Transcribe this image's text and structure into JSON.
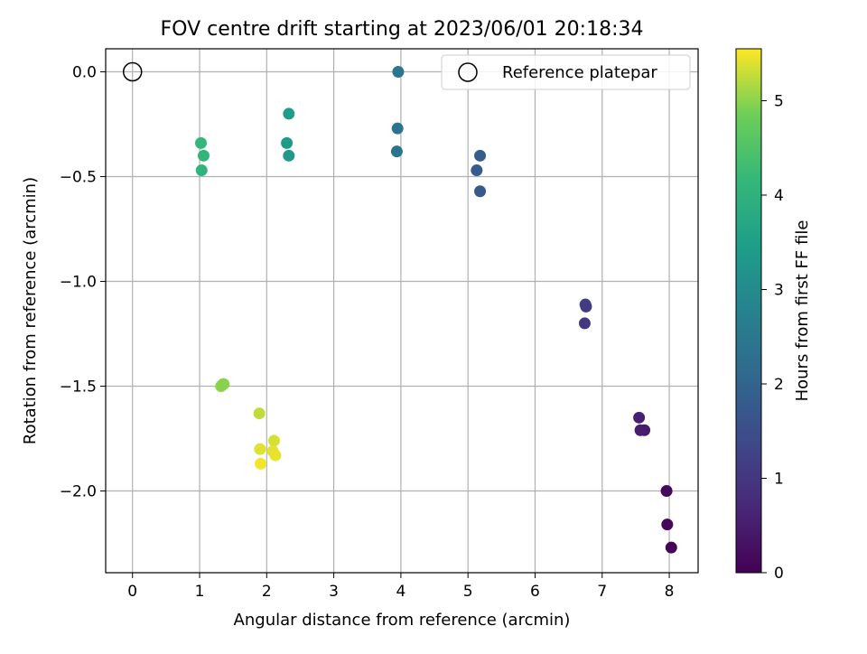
{
  "chart_data": {
    "type": "scatter",
    "title": "FOV centre drift starting at 2023/06/01 20:18:34",
    "xlabel": "Angular distance from reference (arcmin)",
    "ylabel": "Rotation from reference (arcmin)",
    "xlim": [
      -0.4,
      8.43
    ],
    "ylim": [
      -2.39,
      0.11
    ],
    "xticks": [
      0,
      1,
      2,
      3,
      4,
      5,
      6,
      7,
      8
    ],
    "xtick_labels": [
      "0",
      "1",
      "2",
      "3",
      "4",
      "5",
      "6",
      "7",
      "8"
    ],
    "yticks": [
      0.0,
      -0.5,
      -1.0,
      -1.5,
      -2.0
    ],
    "ytick_labels": [
      "0.0",
      "−0.5",
      "−1.0",
      "−1.5",
      "−2.0"
    ],
    "grid": true,
    "legend": {
      "position": "top-right",
      "entries": [
        "Reference platepar"
      ]
    },
    "reference_point": {
      "name": "Reference platepar",
      "x": 0,
      "y": 0
    },
    "colorbar": {
      "label": "Hours from first FF file",
      "colormap": "viridis",
      "range": [
        0,
        5.55
      ],
      "ticks": [
        0,
        1,
        2,
        3,
        4,
        5
      ],
      "tick_labels": [
        "0",
        "1",
        "2",
        "3",
        "4",
        "5"
      ]
    },
    "series": [
      {
        "marker": "filled-circle",
        "color_by": "hours",
        "points": [
          {
            "x": 8.03,
            "y": -2.27,
            "hours": 0.05
          },
          {
            "x": 7.97,
            "y": -2.16,
            "hours": 0.1
          },
          {
            "x": 7.96,
            "y": -2.0,
            "hours": 0.15
          },
          {
            "x": 7.63,
            "y": -1.71,
            "hours": 0.45
          },
          {
            "x": 7.57,
            "y": -1.71,
            "hours": 0.5
          },
          {
            "x": 7.55,
            "y": -1.65,
            "hours": 0.55
          },
          {
            "x": 6.74,
            "y": -1.2,
            "hours": 1.05
          },
          {
            "x": 6.76,
            "y": -1.12,
            "hours": 1.1
          },
          {
            "x": 6.75,
            "y": -1.11,
            "hours": 1.12
          },
          {
            "x": 5.18,
            "y": -0.57,
            "hours": 1.75
          },
          {
            "x": 5.13,
            "y": -0.47,
            "hours": 1.8
          },
          {
            "x": 5.18,
            "y": -0.4,
            "hours": 1.85
          },
          {
            "x": 3.94,
            "y": -0.38,
            "hours": 2.35
          },
          {
            "x": 3.95,
            "y": -0.27,
            "hours": 2.4
          },
          {
            "x": 3.96,
            "y": 0.0,
            "hours": 2.45
          },
          {
            "x": 2.33,
            "y": -0.4,
            "hours": 3.35
          },
          {
            "x": 2.3,
            "y": -0.34,
            "hours": 3.4
          },
          {
            "x": 2.33,
            "y": -0.2,
            "hours": 3.45
          },
          {
            "x": 1.03,
            "y": -0.47,
            "hours": 4.05
          },
          {
            "x": 1.06,
            "y": -0.4,
            "hours": 4.1
          },
          {
            "x": 1.02,
            "y": -0.34,
            "hours": 4.15
          },
          {
            "x": 1.35,
            "y": -1.49,
            "hours": 4.95
          },
          {
            "x": 1.32,
            "y": -1.5,
            "hours": 5.0
          },
          {
            "x": 1.36,
            "y": -1.49,
            "hours": 4.98
          },
          {
            "x": 1.89,
            "y": -1.63,
            "hours": 5.25
          },
          {
            "x": 2.11,
            "y": -1.76,
            "hours": 5.35
          },
          {
            "x": 1.9,
            "y": -1.8,
            "hours": 5.4
          },
          {
            "x": 2.09,
            "y": -1.81,
            "hours": 5.42
          },
          {
            "x": 2.13,
            "y": -1.83,
            "hours": 5.45
          },
          {
            "x": 1.91,
            "y": -1.87,
            "hours": 5.5
          }
        ]
      }
    ]
  }
}
